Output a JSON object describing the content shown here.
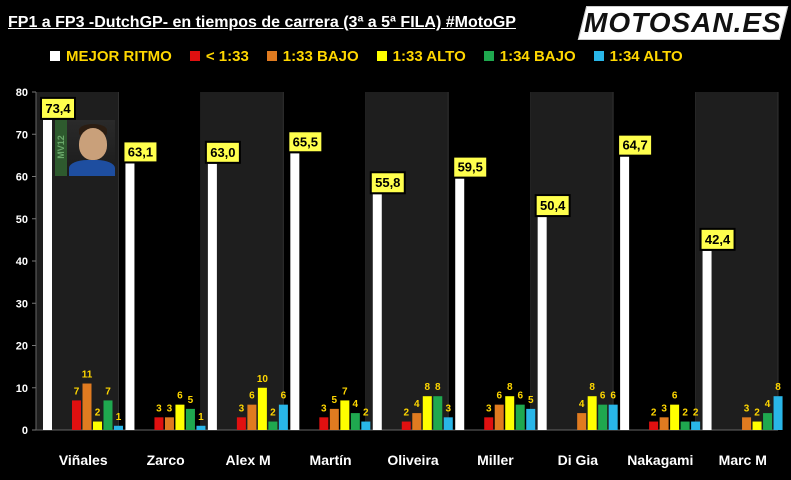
{
  "header": {
    "title": "FP1 a FP3 -DutchGP- en tiempos de carrera (3ª a 5ª FILA) #MotoGP",
    "logo_text": "MOTOSAN.ES"
  },
  "colors": {
    "background": "#000000",
    "grid_band": "#1e1e1e",
    "value_label_bg": "#ffff4d",
    "series": [
      "#ffffff",
      "#e01010",
      "#e07b20",
      "#ffff00",
      "#1fa84f",
      "#29b6e8"
    ]
  },
  "chart_data": {
    "type": "bar",
    "categories": [
      "Viñales",
      "Zarco",
      "Alex M",
      "Martín",
      "Oliveira",
      "Miller",
      "Di Gia",
      "Nakagami",
      "Marc M"
    ],
    "series": [
      {
        "name": "MEJOR RITMO",
        "values": [
          73.4,
          63.1,
          63.0,
          65.5,
          55.8,
          59.5,
          50.4,
          64.7,
          42.4
        ]
      },
      {
        "name": "< 1:33",
        "values": [
          7,
          3,
          3,
          3,
          2,
          3,
          null,
          2,
          null
        ]
      },
      {
        "name": "1:33 BAJO",
        "values": [
          11,
          3,
          6,
          5,
          4,
          6,
          4,
          3,
          3
        ]
      },
      {
        "name": "1:33 ALTO",
        "values": [
          2,
          6,
          10,
          7,
          8,
          8,
          8,
          6,
          2
        ]
      },
      {
        "name": "1:34 BAJO",
        "values": [
          7,
          5,
          2,
          4,
          8,
          6,
          6,
          2,
          4
        ]
      },
      {
        "name": "1:34 ALTO",
        "values": [
          1,
          1,
          6,
          2,
          3,
          5,
          6,
          2,
          8
        ]
      }
    ],
    "value_labels_main": [
      "73,4",
      "63,1",
      "63,0",
      "65,5",
      "55,8",
      "59,5",
      "50,4",
      "64,7",
      "42,4"
    ],
    "ylim": [
      0,
      80
    ],
    "yticks": [
      0,
      10,
      20,
      30,
      40,
      50,
      60,
      70,
      80
    ],
    "grid": false,
    "legend_position": "top"
  },
  "badge": {
    "text": "MV12"
  }
}
